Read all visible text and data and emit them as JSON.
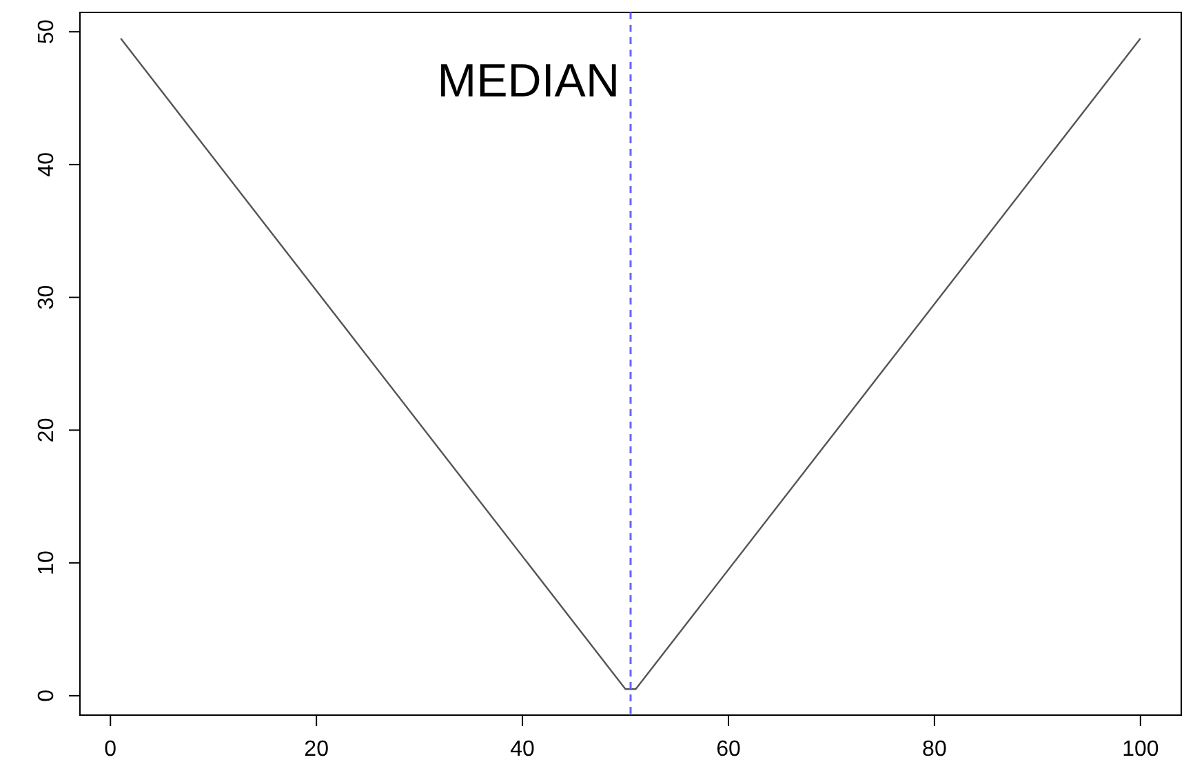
{
  "chart_data": {
    "type": "line",
    "x": [
      1,
      50,
      51,
      100
    ],
    "series": [
      {
        "color": "#555555",
        "values": [
          49.5,
          0.5,
          0.5,
          49.5
        ]
      }
    ],
    "xlim": [
      -2.96,
      103.96
    ],
    "ylim": [
      -1.46,
      51.46
    ],
    "xticks": [
      0,
      20,
      40,
      60,
      80,
      100
    ],
    "yticks": [
      0,
      10,
      20,
      30,
      40,
      50
    ],
    "ref_lines": [
      {
        "axis": "x",
        "value": 50.5,
        "label": "MEDIAN",
        "color": "#6666ff",
        "line_style": "dashed"
      }
    ],
    "marker": "none",
    "line_style": "solid"
  }
}
